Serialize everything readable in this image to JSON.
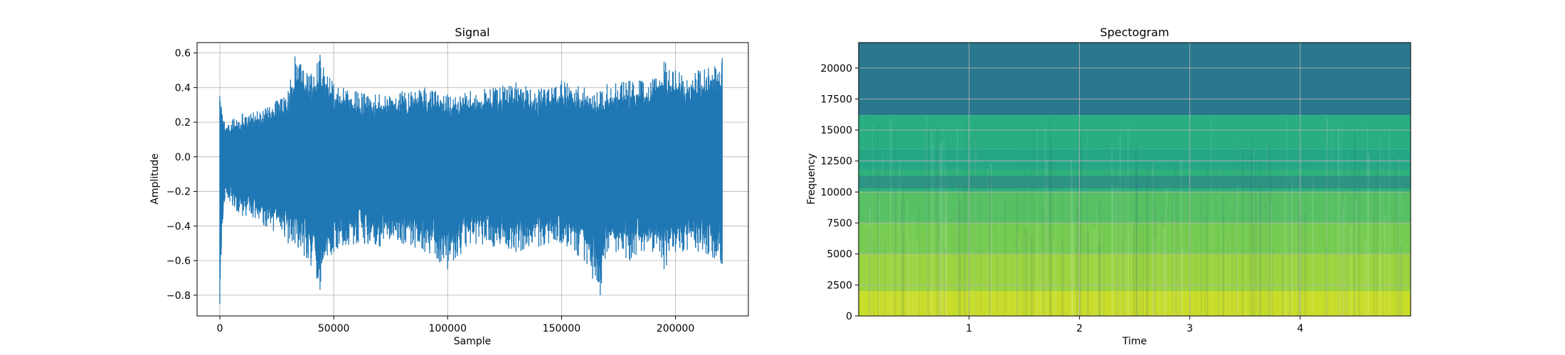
{
  "chart_data": [
    {
      "type": "line",
      "title": "Signal",
      "xlabel": "Sample",
      "ylabel": "Amplitude",
      "xlim": [
        -10000,
        232000
      ],
      "ylim": [
        -0.92,
        0.66
      ],
      "xticks": [
        0,
        50000,
        100000,
        150000,
        200000
      ],
      "xtick_labels": [
        "0",
        "50000",
        "100000",
        "150000",
        "200000"
      ],
      "yticks": [
        -0.8,
        -0.6,
        -0.4,
        -0.2,
        0.0,
        0.2,
        0.4,
        0.6
      ],
      "ytick_labels": [
        "−0.8",
        "−0.6",
        "−0.4",
        "−0.2",
        "0.0",
        "0.2",
        "0.4",
        "0.6"
      ],
      "grid": true,
      "color": "#1f77b4",
      "samples": 220500,
      "envelope": {
        "x": [
          0,
          2000,
          10000,
          20000,
          30000,
          33000,
          40000,
          44000,
          50000,
          60000,
          70000,
          80000,
          90000,
          100000,
          110000,
          120000,
          130000,
          140000,
          150000,
          160000,
          167000,
          170000,
          180000,
          190000,
          195000,
          200000,
          210000,
          220500
        ],
        "upper": [
          0.35,
          0.2,
          0.25,
          0.28,
          0.38,
          0.58,
          0.48,
          0.59,
          0.42,
          0.38,
          0.36,
          0.38,
          0.4,
          0.36,
          0.38,
          0.4,
          0.43,
          0.39,
          0.44,
          0.4,
          0.38,
          0.42,
          0.44,
          0.45,
          0.55,
          0.5,
          0.5,
          0.57
        ],
        "lower": [
          -0.85,
          -0.26,
          -0.34,
          -0.4,
          -0.5,
          -0.5,
          -0.63,
          -0.77,
          -0.55,
          -0.5,
          -0.52,
          -0.5,
          -0.55,
          -0.65,
          -0.5,
          -0.52,
          -0.55,
          -0.52,
          -0.5,
          -0.6,
          -0.8,
          -0.55,
          -0.6,
          -0.55,
          -0.65,
          -0.55,
          -0.55,
          -0.62
        ]
      }
    },
    {
      "type": "heatmap",
      "title": "Spectogram",
      "xlabel": "Time",
      "ylabel": "Frequency",
      "xlim": [
        0.0,
        5.0
      ],
      "ylim": [
        0,
        22050
      ],
      "xticks": [
        1,
        2,
        3,
        4
      ],
      "xtick_labels": [
        "1",
        "2",
        "3",
        "4"
      ],
      "yticks": [
        0,
        2500,
        5000,
        7500,
        10000,
        12500,
        15000,
        17500,
        20000
      ],
      "ytick_labels": [
        "0",
        "2500",
        "5000",
        "7500",
        "10000",
        "12500",
        "15000",
        "17500",
        "20000"
      ],
      "grid": true,
      "colormap": "viridis",
      "bands": [
        {
          "f_low": 0,
          "f_high": 2000,
          "color": "#c8dd2a"
        },
        {
          "f_low": 2000,
          "f_high": 5000,
          "color": "#9bd43f"
        },
        {
          "f_low": 5000,
          "f_high": 7500,
          "color": "#76cc51"
        },
        {
          "f_low": 7500,
          "f_high": 10000,
          "color": "#57c063"
        },
        {
          "f_low": 10000,
          "f_high": 11800,
          "color": "#2fb07a"
        },
        {
          "f_low": 11800,
          "f_high": 13500,
          "color": "#26a784"
        },
        {
          "f_low": 13500,
          "f_high": 16200,
          "color": "#28ae80"
        },
        {
          "f_low": 16200,
          "f_high": 22050,
          "color": "#2a788e"
        }
      ],
      "dark_streak": {
        "f_low": 10300,
        "f_high": 11300,
        "color": "#2c718e"
      }
    }
  ]
}
